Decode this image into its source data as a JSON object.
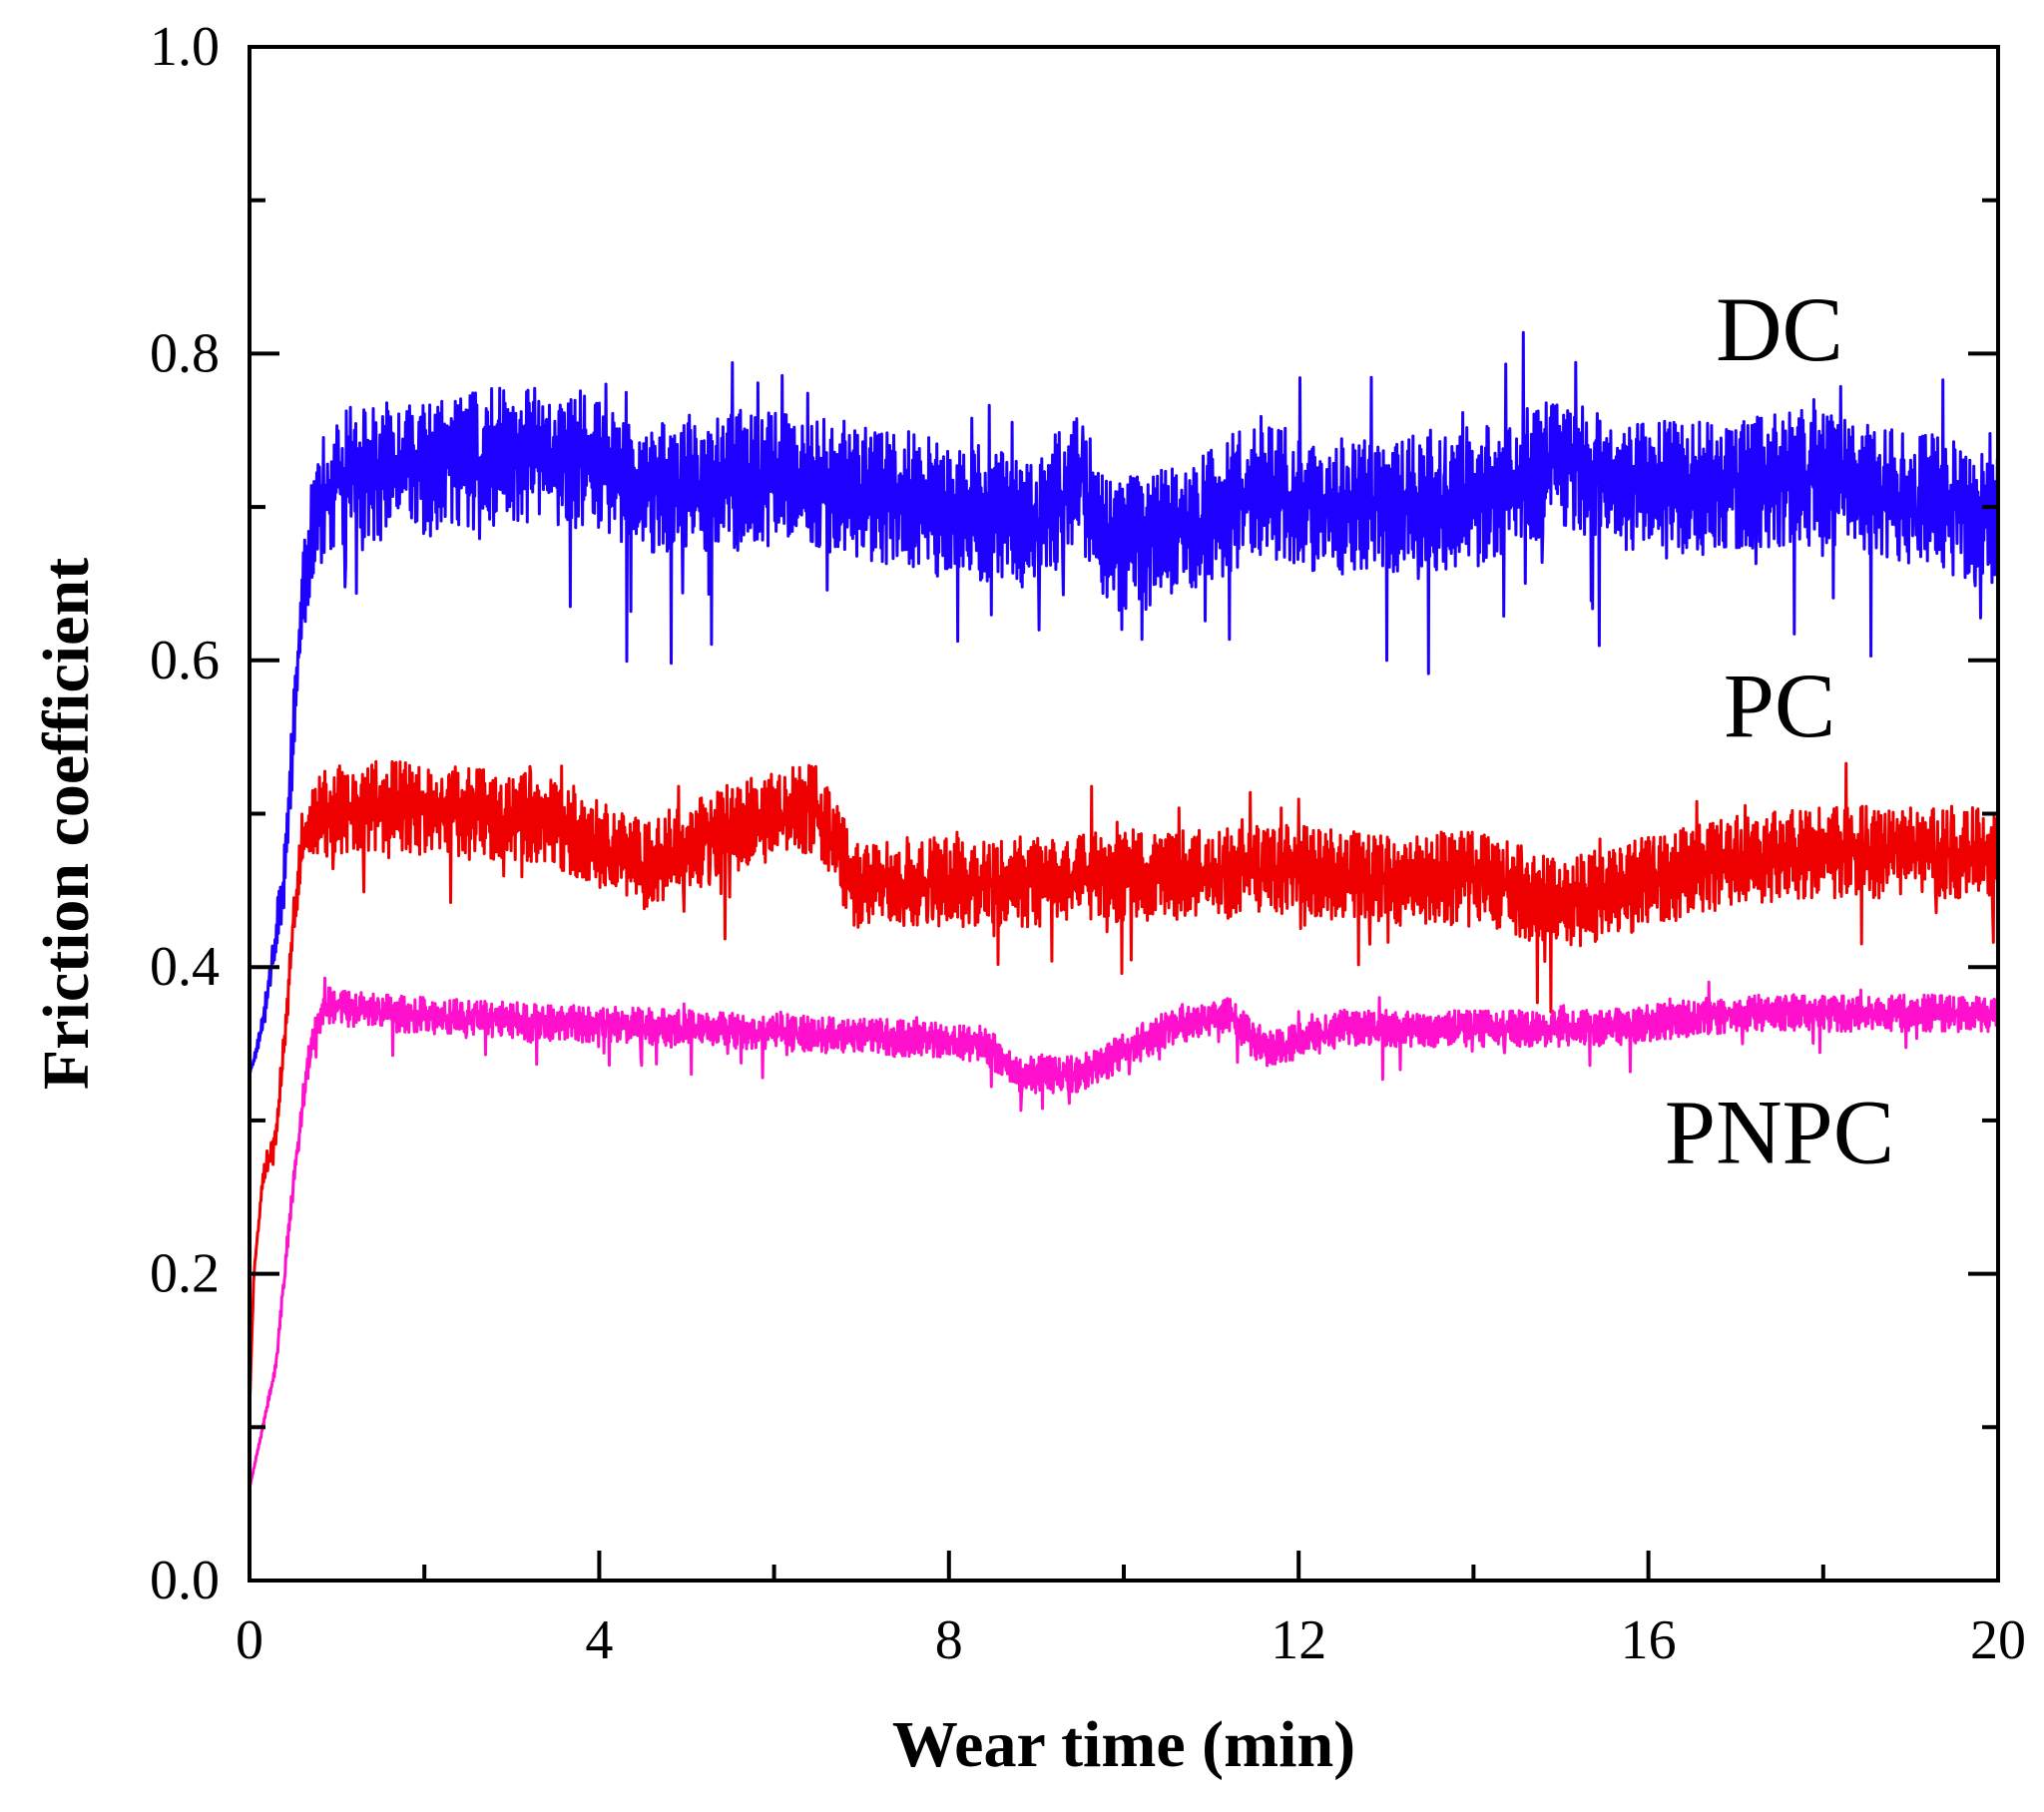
{
  "chart_data": {
    "type": "line",
    "title": "",
    "xlabel": "Wear time (min)",
    "ylabel": "Friction coefficient",
    "xlim": [
      0,
      20
    ],
    "ylim": [
      0.0,
      1.0
    ],
    "x_major_ticks": [
      0,
      4,
      8,
      12,
      16,
      20
    ],
    "x_tick_labels": [
      "0",
      "4",
      "8",
      "12",
      "16",
      "20"
    ],
    "x_minor_ticks": [
      2,
      6,
      10,
      14,
      18
    ],
    "y_major_ticks": [
      0.0,
      0.2,
      0.4,
      0.6,
      0.8,
      1.0
    ],
    "y_tick_labels": [
      "0.0",
      "0.2",
      "0.4",
      "0.6",
      "0.8",
      "1.0"
    ],
    "y_minor_ticks": [
      0.1,
      0.3,
      0.5,
      0.7,
      0.9
    ],
    "grid": false,
    "series": [
      {
        "name": "DC",
        "label": "DC",
        "color": "#1e00ff",
        "noise_amplitude": 0.045,
        "points": [
          [
            0.0,
            0.33
          ],
          [
            0.1,
            0.35
          ],
          [
            0.2,
            0.38
          ],
          [
            0.3,
            0.42
          ],
          [
            0.4,
            0.46
          ],
          [
            0.5,
            0.55
          ],
          [
            0.6,
            0.64
          ],
          [
            0.7,
            0.68
          ],
          [
            0.8,
            0.7
          ],
          [
            1.0,
            0.72
          ],
          [
            2.0,
            0.725
          ],
          [
            3.0,
            0.735
          ],
          [
            4.0,
            0.73
          ],
          [
            4.5,
            0.71
          ],
          [
            5.0,
            0.715
          ],
          [
            6.0,
            0.72
          ],
          [
            7.0,
            0.71
          ],
          [
            8.0,
            0.7
          ],
          [
            9.0,
            0.69
          ],
          [
            9.5,
            0.72
          ],
          [
            9.8,
            0.675
          ],
          [
            10.5,
            0.68
          ],
          [
            11.5,
            0.71
          ],
          [
            12.5,
            0.7
          ],
          [
            14.0,
            0.705
          ],
          [
            15.0,
            0.73
          ],
          [
            16.0,
            0.71
          ],
          [
            17.0,
            0.715
          ],
          [
            18.0,
            0.72
          ],
          [
            19.0,
            0.705
          ],
          [
            20.0,
            0.695
          ]
        ]
      },
      {
        "name": "PC",
        "label": "PC",
        "color": "#ee0000",
        "noise_amplitude": 0.03,
        "points": [
          [
            0.0,
            0.11
          ],
          [
            0.05,
            0.2
          ],
          [
            0.15,
            0.26
          ],
          [
            0.3,
            0.29
          ],
          [
            0.4,
            0.35
          ],
          [
            0.5,
            0.43
          ],
          [
            0.6,
            0.48
          ],
          [
            0.8,
            0.5
          ],
          [
            1.5,
            0.505
          ],
          [
            2.5,
            0.5
          ],
          [
            3.5,
            0.495
          ],
          [
            4.5,
            0.465
          ],
          [
            5.5,
            0.49
          ],
          [
            6.5,
            0.505
          ],
          [
            6.9,
            0.455
          ],
          [
            8.0,
            0.455
          ],
          [
            9.0,
            0.455
          ],
          [
            10.0,
            0.46
          ],
          [
            11.0,
            0.46
          ],
          [
            12.0,
            0.465
          ],
          [
            13.0,
            0.455
          ],
          [
            14.0,
            0.46
          ],
          [
            15.0,
            0.44
          ],
          [
            16.0,
            0.455
          ],
          [
            17.0,
            0.47
          ],
          [
            18.0,
            0.475
          ],
          [
            19.0,
            0.475
          ],
          [
            20.0,
            0.475
          ]
        ]
      },
      {
        "name": "PNPC",
        "label": "PNPC",
        "color": "#ff10cc",
        "noise_amplitude": 0.012,
        "points": [
          [
            0.0,
            0.06
          ],
          [
            0.3,
            0.14
          ],
          [
            0.5,
            0.26
          ],
          [
            0.7,
            0.35
          ],
          [
            0.85,
            0.375
          ],
          [
            1.5,
            0.37
          ],
          [
            3.0,
            0.365
          ],
          [
            5.0,
            0.36
          ],
          [
            7.0,
            0.355
          ],
          [
            8.4,
            0.35
          ],
          [
            8.8,
            0.33
          ],
          [
            9.5,
            0.33
          ],
          [
            10.5,
            0.36
          ],
          [
            11.2,
            0.37
          ],
          [
            11.6,
            0.345
          ],
          [
            12.5,
            0.36
          ],
          [
            14.0,
            0.36
          ],
          [
            15.5,
            0.36
          ],
          [
            17.0,
            0.37
          ],
          [
            20.0,
            0.37
          ]
        ]
      }
    ]
  }
}
